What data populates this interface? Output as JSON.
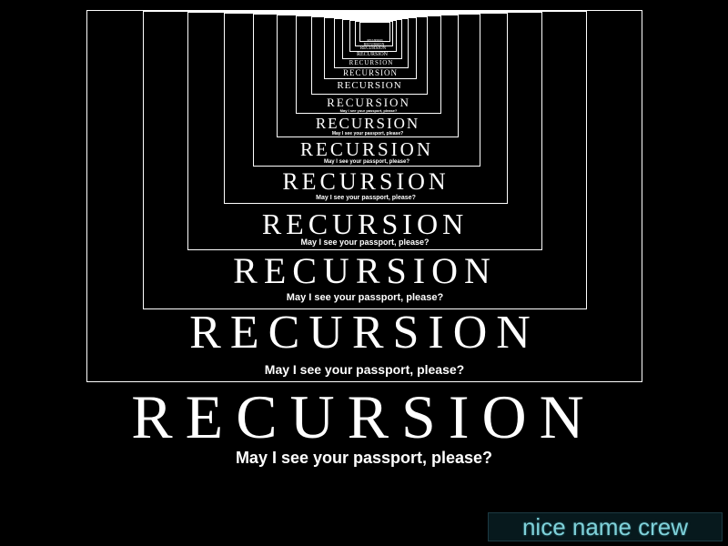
{
  "poster": {
    "title": "RECURSION",
    "caption": "May I see your passport, please?"
  },
  "watermark": {
    "text": "nice name crew"
  }
}
